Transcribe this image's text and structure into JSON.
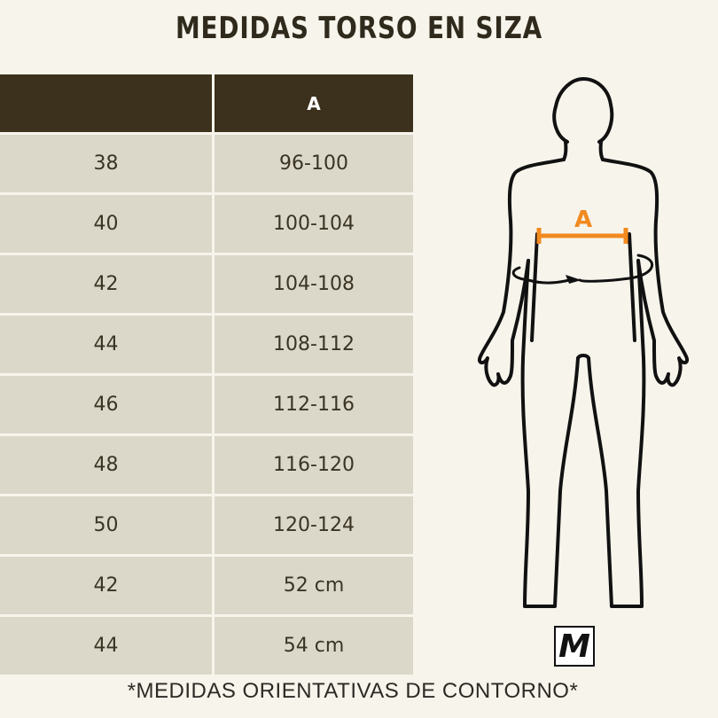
{
  "title": "MEDIDAS TORSO EN SIZA",
  "table": {
    "header": [
      "",
      "A"
    ],
    "rows": [
      [
        "38",
        "96-100"
      ],
      [
        "40",
        "100-104"
      ],
      [
        "42",
        "104-108"
      ],
      [
        "44",
        "108-112"
      ],
      [
        "46",
        "112-116"
      ],
      [
        "48",
        "116-120"
      ],
      [
        "50",
        "120-124"
      ],
      [
        "42",
        "52 cm"
      ],
      [
        "44",
        "54 cm"
      ]
    ]
  },
  "figure": {
    "measure_label": "A",
    "measure_color": "#f28a1f"
  },
  "size_badge": "M",
  "footnote": "*MEDIDAS ORIENTATIVAS DE CONTORNO*"
}
